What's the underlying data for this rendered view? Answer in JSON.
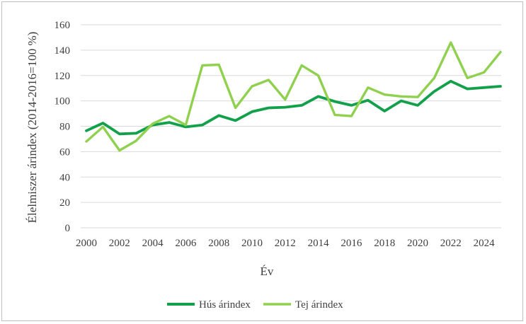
{
  "chart_data": {
    "type": "line",
    "xlabel": "Év",
    "ylabel": "Élelmiszer árindex (2014-2016=100 %)",
    "x": [
      2000,
      2001,
      2002,
      2003,
      2004,
      2005,
      2006,
      2007,
      2008,
      2009,
      2010,
      2011,
      2012,
      2013,
      2014,
      2015,
      2016,
      2017,
      2018,
      2019,
      2020,
      2021,
      2022,
      2023,
      2024,
      2025
    ],
    "xlim": [
      2000,
      2025
    ],
    "ylim": [
      0,
      160
    ],
    "xticks": [
      "2000",
      "2002",
      "2004",
      "2006",
      "2008",
      "2010",
      "2012",
      "2014",
      "2016",
      "2018",
      "2020",
      "2022",
      "2024"
    ],
    "yticks": [
      "0",
      "20",
      "40",
      "60",
      "80",
      "100",
      "120",
      "140",
      "160"
    ],
    "grid": true,
    "legend_position": "bottom",
    "series": [
      {
        "name": "Hús árindex",
        "color": "#13a04b",
        "values": [
          76.5,
          82.5,
          74,
          74.5,
          81,
          83,
          79.5,
          81,
          88.5,
          84.5,
          91.5,
          94.5,
          95,
          96.5,
          103.5,
          99.5,
          96.5,
          100.5,
          92,
          100,
          96.5,
          107.5,
          115.5,
          109.5,
          110.5,
          111.5
        ]
      },
      {
        "name": "Tej árindex",
        "color": "#8fd14f",
        "values": [
          68,
          79.5,
          61,
          68.5,
          82,
          88,
          81,
          128,
          128.5,
          94.5,
          111.5,
          116.5,
          101,
          128,
          120,
          89,
          88,
          110.5,
          105,
          103.5,
          103,
          118,
          146,
          118,
          122.5,
          138.5
        ]
      }
    ]
  }
}
